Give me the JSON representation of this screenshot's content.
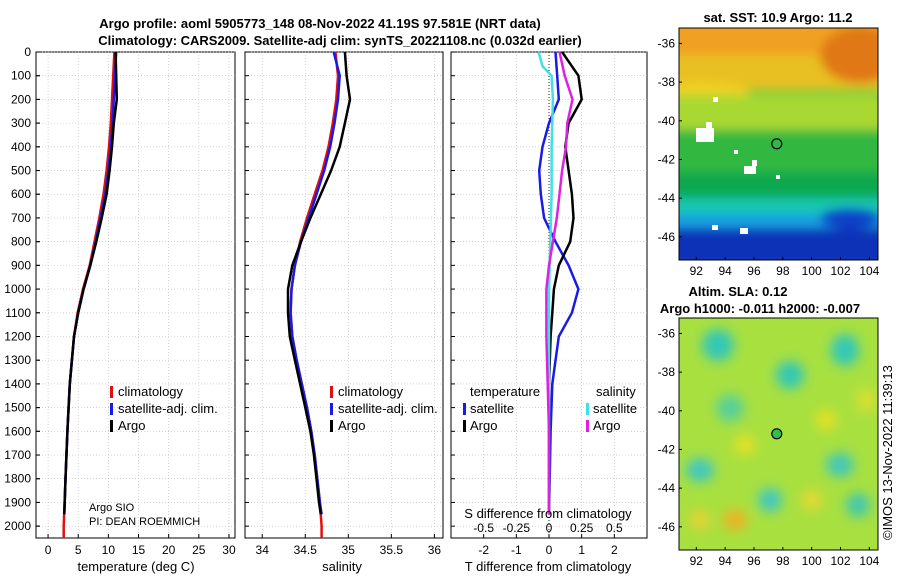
{
  "header": {
    "title_line1": "Argo profile: aoml 5905773_148 08-Nov-2022 41.19S 97.581E (NRT data)",
    "title_line2": "Climatology: CARS2009. Satellite-adj clim: synTS_20221108.nc (0.032d earlier)"
  },
  "colors": {
    "climatology": "#e01010",
    "satellite_adj": "#1a1ae6",
    "argo": "#000000",
    "sat_salinity": "#40e0e8",
    "argo_salinity": "#e020e0"
  },
  "credits": {
    "line1": "Argo SIO",
    "line2": "PI: DEAN ROEMMICH"
  },
  "watermark": "©IMOS 13-Nov-2022 11:39:13",
  "chart_data": [
    {
      "id": "temperature",
      "type": "line",
      "xlabel": "temperature (deg C)",
      "ylabel": "",
      "xlim": [
        -2,
        31
      ],
      "ylim": [
        2050,
        0
      ],
      "xticks": [
        0,
        5,
        10,
        15,
        20,
        25,
        30
      ],
      "yticks": [
        0,
        100,
        200,
        300,
        400,
        500,
        600,
        700,
        800,
        900,
        1000,
        1100,
        1200,
        1300,
        1400,
        1500,
        1600,
        1700,
        1800,
        1900,
        2000
      ],
      "legend": [
        "climatology",
        "satellite-adj. clim.",
        "Argo"
      ],
      "legend_position": "lower-right",
      "series": [
        {
          "name": "climatology",
          "color": "#e01010",
          "pressure": [
            0,
            100,
            200,
            300,
            400,
            500,
            600,
            700,
            800,
            900,
            1000,
            1100,
            1200,
            1400,
            1600,
            1800,
            2000,
            2050
          ],
          "value": [
            11.0,
            10.8,
            10.6,
            10.4,
            10.1,
            9.7,
            9.2,
            8.5,
            7.7,
            6.9,
            5.8,
            4.9,
            4.3,
            3.6,
            3.2,
            2.9,
            2.6,
            2.6
          ]
        },
        {
          "name": "satellite-adj. clim.",
          "color": "#1a1ae6",
          "pressure": [
            0,
            100,
            200,
            300,
            400,
            500,
            600,
            700,
            800,
            900,
            1000,
            1100,
            1200,
            1400,
            1600,
            1800,
            1950
          ],
          "value": [
            11.3,
            11.1,
            10.9,
            10.7,
            10.4,
            10.0,
            9.5,
            8.7,
            7.9,
            7.0,
            5.9,
            5.0,
            4.3,
            3.6,
            3.2,
            2.9,
            2.7
          ]
        },
        {
          "name": "Argo",
          "color": "#000000",
          "pressure": [
            0,
            100,
            200,
            300,
            400,
            500,
            600,
            700,
            800,
            900,
            1000,
            1100,
            1200,
            1400,
            1600,
            1800,
            1950
          ],
          "value": [
            11.2,
            11.3,
            11.4,
            10.9,
            10.6,
            10.2,
            9.7,
            8.9,
            8.0,
            7.0,
            5.9,
            5.0,
            4.3,
            3.6,
            3.2,
            2.9,
            2.7
          ]
        }
      ]
    },
    {
      "id": "salinity",
      "type": "line",
      "xlabel": "salinity",
      "ylabel": "",
      "xlim": [
        33.8,
        36.1
      ],
      "ylim": [
        2050,
        0
      ],
      "xticks": [
        34,
        34.5,
        35,
        35.5,
        36
      ],
      "legend": [
        "climatology",
        "satellite-adj. clim.",
        "Argo"
      ],
      "legend_position": "lower-right",
      "series": [
        {
          "name": "climatology",
          "color": "#e01010",
          "pressure": [
            0,
            100,
            200,
            300,
            400,
            500,
            600,
            700,
            800,
            900,
            1000,
            1100,
            1200,
            1300,
            1400,
            1500,
            1600,
            1700,
            1800,
            1900,
            2000,
            2050
          ],
          "value": [
            34.85,
            34.88,
            34.86,
            34.82,
            34.77,
            34.7,
            34.61,
            34.52,
            34.44,
            34.38,
            34.34,
            34.33,
            34.35,
            34.4,
            34.46,
            34.52,
            34.57,
            34.61,
            34.64,
            34.67,
            34.69,
            34.69
          ]
        },
        {
          "name": "satellite-adj. clim.",
          "color": "#1a1ae6",
          "pressure": [
            0,
            100,
            200,
            300,
            400,
            500,
            600,
            700,
            800,
            900,
            1000,
            1100,
            1200,
            1300,
            1400,
            1500,
            1600,
            1700,
            1800,
            1900,
            1950
          ],
          "value": [
            34.83,
            34.9,
            34.88,
            34.84,
            34.79,
            34.72,
            34.63,
            34.54,
            34.45,
            34.38,
            34.34,
            34.33,
            34.35,
            34.4,
            34.46,
            34.52,
            34.57,
            34.61,
            34.64,
            34.67,
            34.69
          ]
        },
        {
          "name": "Argo",
          "color": "#000000",
          "pressure": [
            0,
            100,
            200,
            300,
            400,
            500,
            600,
            700,
            800,
            900,
            1000,
            1100,
            1200,
            1300,
            1400,
            1500,
            1600,
            1700,
            1800,
            1900,
            1950
          ],
          "value": [
            34.96,
            34.98,
            35.02,
            34.96,
            34.9,
            34.8,
            34.68,
            34.56,
            34.45,
            34.35,
            34.3,
            34.3,
            34.32,
            34.38,
            34.44,
            34.5,
            34.56,
            34.6,
            34.63,
            34.66,
            34.68
          ]
        }
      ]
    },
    {
      "id": "difference",
      "type": "line",
      "xlabel": "T difference from climatology",
      "xlabel_top": "S difference from climatology",
      "xlim": [
        -3,
        3
      ],
      "ylim": [
        2050,
        0
      ],
      "xticks": [
        -2,
        -1,
        0,
        1,
        2
      ],
      "xticks_s": [
        "-0.5",
        "-0.25",
        "0",
        "0.25",
        "0.5"
      ],
      "legend_temperature_title": "temperature",
      "legend_salinity_title": "salinity",
      "legend_temperature": [
        "satellite",
        "Argo"
      ],
      "legend_salinity": [
        "satellite",
        "Argo"
      ],
      "series": [
        {
          "name": "T satellite",
          "color": "#1a1ae6",
          "pressure": [
            0,
            100,
            200,
            300,
            400,
            500,
            600,
            700,
            800,
            900,
            1000,
            1100,
            1200,
            1400,
            1600,
            1800,
            1950
          ],
          "value": [
            0.2,
            0.25,
            0.3,
            0.0,
            -0.2,
            -0.3,
            -0.25,
            -0.15,
            0.2,
            0.6,
            0.9,
            0.7,
            0.3,
            0.1,
            0.05,
            0.02,
            0.0
          ]
        },
        {
          "name": "T Argo",
          "color": "#000000",
          "pressure": [
            0,
            100,
            200,
            300,
            400,
            500,
            600,
            700,
            800,
            900,
            1000,
            1100,
            1200,
            1400,
            1600,
            1800,
            1950
          ],
          "value": [
            0.4,
            0.9,
            1.0,
            0.6,
            0.5,
            0.6,
            0.7,
            0.75,
            0.65,
            0.3,
            0.15,
            0.1,
            0.05,
            0.0,
            0.0,
            0.0,
            0.0
          ]
        },
        {
          "name": "S satellite",
          "color": "#40e0e8",
          "pressure": [
            0,
            60,
            100,
            200,
            400,
            600,
            800,
            1000,
            1200,
            1400,
            1600,
            1800,
            1950
          ],
          "value": [
            -0.08,
            -0.05,
            0.02,
            0.03,
            0.02,
            0.02,
            0.01,
            0.0,
            0.0,
            0.0,
            0.0,
            0.0,
            0.0
          ]
        },
        {
          "name": "S Argo",
          "color": "#e020e0",
          "pressure": [
            0,
            100,
            200,
            300,
            400,
            500,
            600,
            700,
            800,
            900,
            1000,
            1100,
            1200,
            1400,
            1600,
            1800,
            1950
          ],
          "value": [
            0.08,
            0.12,
            0.18,
            0.14,
            0.13,
            0.1,
            0.08,
            0.06,
            0.03,
            0.0,
            -0.02,
            -0.02,
            -0.02,
            -0.01,
            0.0,
            0.0,
            0.0
          ]
        }
      ]
    },
    {
      "id": "sst_map",
      "type": "heatmap",
      "title": "sat. SST: 10.9 Argo: 11.2",
      "xlim": [
        90.8,
        104.6
      ],
      "ylim": [
        -47.2,
        -35.2
      ],
      "xticks": [
        92,
        94,
        96,
        98,
        100,
        102,
        104
      ],
      "yticks": [
        -36,
        -38,
        -40,
        -42,
        -44,
        -46
      ],
      "marker": {
        "lon": 97.58,
        "lat": -41.19
      }
    },
    {
      "id": "sla_map",
      "type": "heatmap",
      "title_line1": "Altim. SLA: 0.12",
      "title_line2": "Argo h1000: -0.011 h2000: -0.007",
      "xlim": [
        90.8,
        104.6
      ],
      "ylim": [
        -47.2,
        -35.2
      ],
      "xticks": [
        92,
        94,
        96,
        98,
        100,
        102,
        104
      ],
      "yticks": [
        -36,
        -38,
        -40,
        -42,
        -44,
        -46
      ],
      "marker": {
        "lon": 97.58,
        "lat": -41.19
      }
    }
  ]
}
